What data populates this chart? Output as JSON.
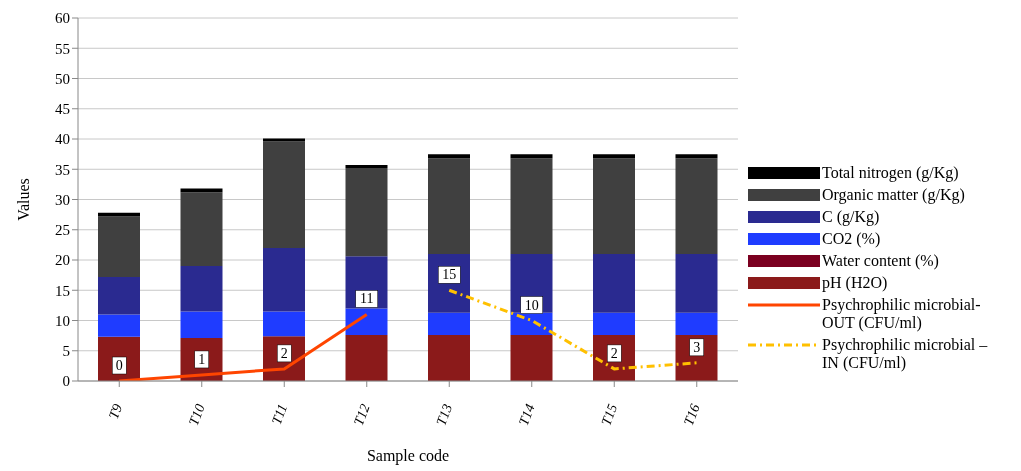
{
  "chart_data": {
    "type": "bar",
    "stacked": true,
    "xlabel": "Sample code",
    "ylabel": "Values",
    "categories": [
      "T9",
      "T10",
      "T11",
      "T12",
      "T13",
      "T14",
      "T15",
      "T16"
    ],
    "ylim": [
      0,
      60
    ],
    "yticks": [
      0,
      5,
      10,
      15,
      20,
      25,
      30,
      35,
      40,
      45,
      50,
      55,
      60
    ],
    "grid": "y",
    "legend": "right",
    "marker": "none",
    "series": [
      {
        "name": "pH (H2O)",
        "color": "#8b1a1a",
        "values": [
          7.3,
          7.1,
          7.4,
          7.6,
          7.6,
          7.6,
          7.6,
          7.6
        ]
      },
      {
        "name": "Water content (%)",
        "color": "#7b0020",
        "values": [
          0,
          0,
          0,
          0,
          0,
          0,
          0,
          0
        ]
      },
      {
        "name": "CO2 (%)",
        "color": "#1f3cff",
        "values": [
          3.7,
          4.4,
          4.1,
          4.4,
          3.7,
          3.7,
          3.7,
          3.7
        ]
      },
      {
        "name": "C (g/Kg)",
        "color": "#2a2a90",
        "values": [
          6.2,
          7.5,
          10.5,
          8.6,
          9.7,
          9.7,
          9.7,
          9.7
        ]
      },
      {
        "name": "Organic matter (g/Kg)",
        "color": "#404040",
        "values": [
          10,
          12.2,
          17.6,
          14.6,
          15.8,
          15.8,
          15.8,
          15.8
        ]
      },
      {
        "name": "Total nitrogen (g/Kg)",
        "color": "#000000",
        "values": [
          0.6,
          0.6,
          0.5,
          0.5,
          0.7,
          0.7,
          0.7,
          0.7
        ]
      },
      {
        "name": "Psychrophilic microbial-OUT (CFU/ml)",
        "type": "line",
        "color": "#ff4500",
        "line_style": "solid",
        "values": [
          0,
          1,
          2,
          11,
          null,
          null,
          null,
          null
        ],
        "value_labels": [
          "0",
          "1",
          "2",
          "11",
          null,
          null,
          null,
          null
        ]
      },
      {
        "name": "Psychrophilic microbial – IN (CFU/ml)",
        "type": "line",
        "color": "#ffc000",
        "line_style": "dashed",
        "values": [
          null,
          null,
          null,
          null,
          15,
          10,
          2,
          3
        ],
        "value_labels": [
          null,
          null,
          null,
          null,
          "15",
          "10",
          "2",
          "3"
        ]
      }
    ]
  }
}
